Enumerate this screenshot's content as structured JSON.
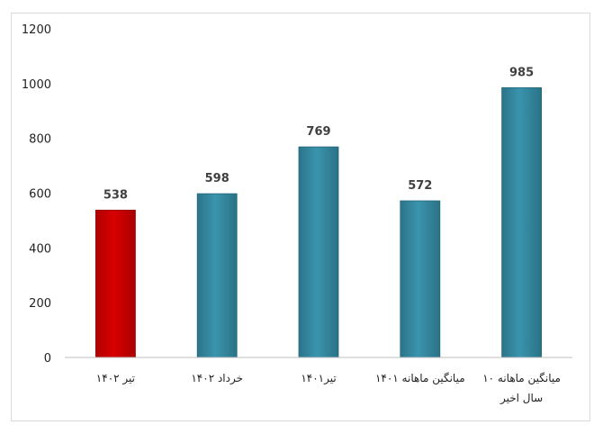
{
  "chart_data": {
    "type": "bar",
    "categories": [
      "تیر ۱۴۰۲",
      "خرداد ۱۴۰۲",
      "تیر۱۴۰۱",
      "میانگین ماهانه ۱۴۰۱",
      "میانگین ماهانه ۱۰ سال اخیر"
    ],
    "values": [
      538,
      598,
      769,
      572,
      985
    ],
    "data_labels": [
      "538",
      "598",
      "769",
      "572",
      "985"
    ],
    "bar_colors": [
      "#c00000",
      "#31859c",
      "#31859c",
      "#31859c",
      "#31859c"
    ],
    "ylim": [
      0,
      1200
    ],
    "yticks": [
      0,
      200,
      400,
      600,
      800,
      1000,
      1200
    ],
    "grid": false,
    "legend": "none",
    "title": "",
    "xlabel": "",
    "ylabel": ""
  }
}
